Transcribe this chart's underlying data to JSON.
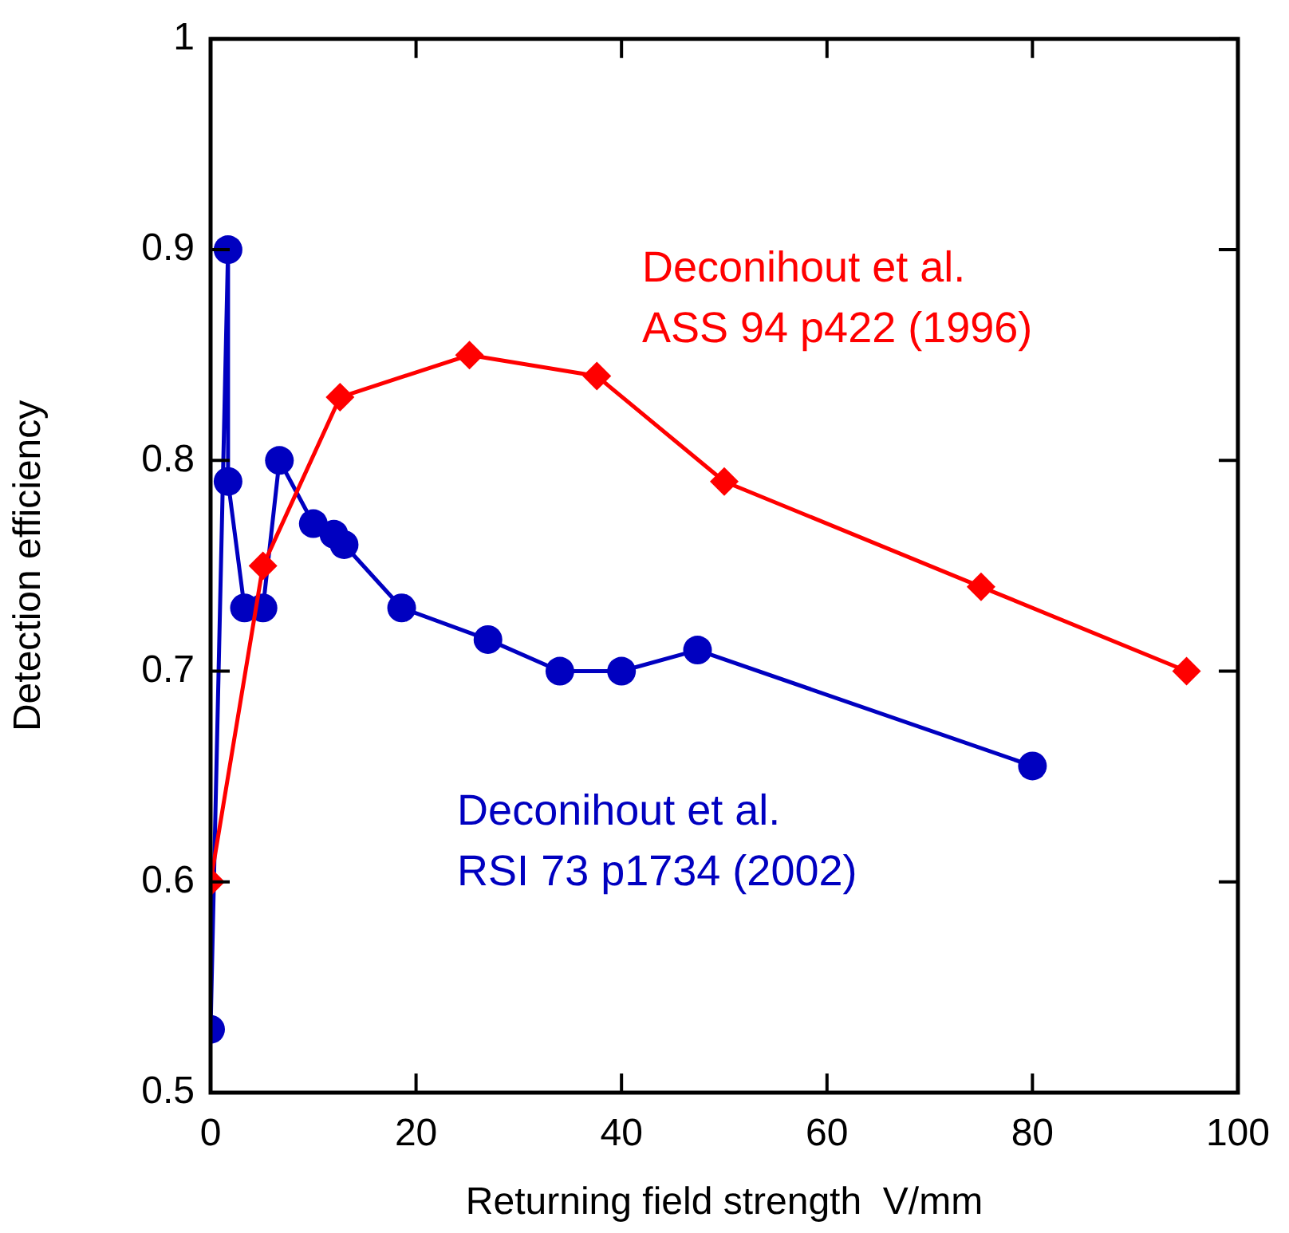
{
  "chart_data": {
    "type": "line",
    "xlabel": "Returning field strength  V/mm",
    "ylabel": "Detection efficiency",
    "xlim": [
      0,
      100
    ],
    "xticks": [
      0,
      20,
      40,
      60,
      80,
      100
    ],
    "ylim": [
      0.5,
      1.0
    ],
    "yticks": [
      0.5,
      0.6,
      0.7,
      0.8,
      0.9,
      1.0
    ],
    "grid": false,
    "legend": false,
    "series": [
      {
        "name": "Deconihout et al.\nASS 94 p422 (1996)",
        "color": "#ff0000",
        "marker": "diamond",
        "x": [
          0,
          5.1,
          12.6,
          25.2,
          37.6,
          50,
          75,
          95
        ],
        "values": [
          0.6,
          0.75,
          0.83,
          0.85,
          0.84,
          0.79,
          0.74,
          0.7
        ]
      },
      {
        "name": "Deconihout et al.\nRSI 73 p1734 (2002)",
        "color": "#0000c0",
        "marker": "circle",
        "x": [
          0,
          1.7,
          1.7,
          3.3,
          5.1,
          6.7,
          10,
          12,
          13,
          18.6,
          27,
          34,
          40,
          47.4,
          80
        ],
        "values": [
          0.53,
          0.9,
          0.79,
          0.73,
          0.73,
          0.8,
          0.77,
          0.765,
          0.76,
          0.73,
          0.715,
          0.7,
          0.7,
          0.71,
          0.655
        ]
      }
    ]
  }
}
